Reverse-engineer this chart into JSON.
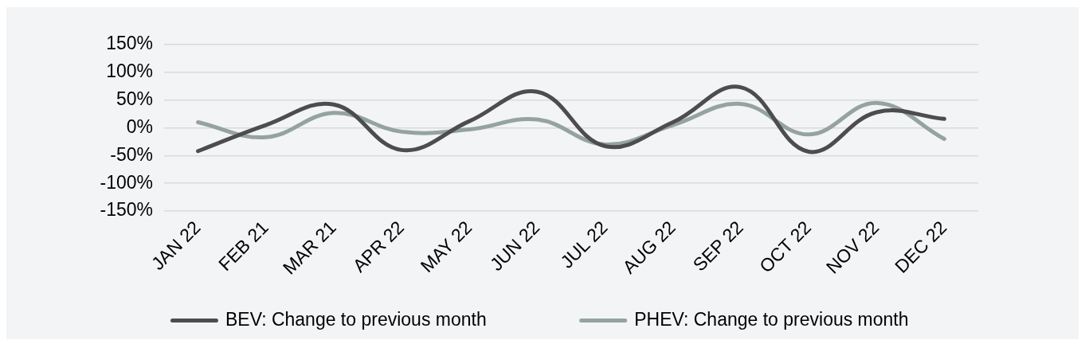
{
  "chart_data": {
    "type": "line",
    "categories": [
      "JAN 22",
      "FEB 21",
      "MAR 21",
      "APR 22",
      "MAY 22",
      "JUN 22",
      "JUL 22",
      "AUG 22",
      "SEP 22",
      "OCT 22",
      "NOV 22",
      "DEC 22"
    ],
    "series": [
      {
        "name": "BEV: Change to previous month",
        "color": "#4d4d4d",
        "values": [
          -42,
          5,
          42,
          -40,
          12,
          65,
          -33,
          10,
          73,
          -43,
          28,
          16
        ]
      },
      {
        "name": "PHEV: Change to previous month",
        "color": "#95a3a0",
        "values": [
          10,
          -17,
          27,
          -7,
          -3,
          15,
          -30,
          5,
          43,
          -12,
          45,
          -20
        ]
      }
    ],
    "ylim": [
      -150,
      150
    ],
    "yticks": [
      {
        "value": -150,
        "label": "-150%"
      },
      {
        "value": -100,
        "label": "-100%"
      },
      {
        "value": -50,
        "label": "-50%"
      },
      {
        "value": 0,
        "label": "0%"
      },
      {
        "value": 50,
        "label": "50%"
      },
      {
        "value": 100,
        "label": "100%"
      },
      {
        "value": 150,
        "label": "150%"
      }
    ],
    "grid": "y",
    "legend": "bottom",
    "marker": "none",
    "line_style": "solid"
  }
}
